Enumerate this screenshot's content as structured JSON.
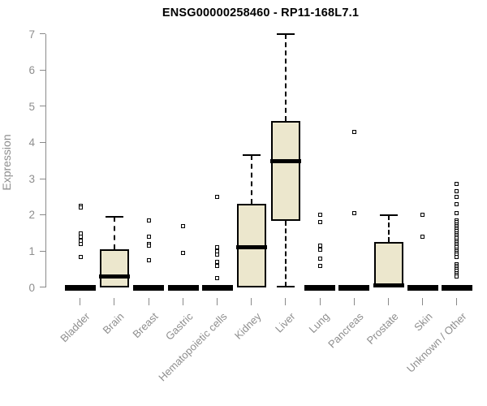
{
  "colors": {
    "background": "#ffffff",
    "title": "#000000",
    "axis": "#8a8a8a",
    "label": "#8e8e8e",
    "box_fill": "#ece7cd",
    "line": "#000000"
  },
  "chart_data": {
    "type": "boxplot",
    "title": "ENSG00000258460 - RP11-168L7.1",
    "ylabel": "Expression",
    "xlabel": "",
    "ylim": [
      0,
      7
    ],
    "yticks": [
      0,
      1,
      2,
      3,
      4,
      5,
      6,
      7
    ],
    "grid": false,
    "legend": false,
    "categories": [
      "Bladder",
      "Brain",
      "Breast",
      "Gastric",
      "Hematopoietic cells",
      "Kidney",
      "Liver",
      "Lung",
      "Pancreas",
      "Prostate",
      "Skin",
      "Unknown / Other"
    ],
    "series": [
      {
        "category": "Bladder",
        "collapsed": true,
        "q1": 0,
        "median": 0,
        "q3": 0,
        "whisker_low": 0,
        "whisker_high": 0,
        "outliers": [
          2.25,
          2.2,
          1.5,
          1.4,
          1.3,
          1.2,
          0.85
        ]
      },
      {
        "category": "Brain",
        "collapsed": false,
        "q1": 0,
        "median": 0.3,
        "q3": 1.05,
        "whisker_low": 0,
        "whisker_high": 1.95,
        "outliers": []
      },
      {
        "category": "Breast",
        "collapsed": true,
        "q1": 0,
        "median": 0,
        "q3": 0,
        "whisker_low": 0,
        "whisker_high": 0,
        "outliers": [
          1.85,
          1.4,
          1.2,
          1.15,
          0.75
        ]
      },
      {
        "category": "Gastric",
        "collapsed": true,
        "q1": 0,
        "median": 0,
        "q3": 0,
        "whisker_low": 0,
        "whisker_high": 0,
        "outliers": [
          1.7,
          0.95
        ]
      },
      {
        "category": "Hematopoietic cells",
        "collapsed": true,
        "q1": 0,
        "median": 0,
        "q3": 0,
        "whisker_low": 0,
        "whisker_high": 0,
        "outliers": [
          2.5,
          1.1,
          1.0,
          0.9,
          0.7,
          0.6,
          0.25
        ]
      },
      {
        "category": "Kidney",
        "collapsed": false,
        "q1": 0,
        "median": 1.1,
        "q3": 2.3,
        "whisker_low": 0,
        "whisker_high": 3.65,
        "outliers": []
      },
      {
        "category": "Liver",
        "collapsed": false,
        "q1": 1.85,
        "median": 3.5,
        "q3": 4.6,
        "whisker_low": 0.02,
        "whisker_high": 7.0,
        "outliers": []
      },
      {
        "category": "Lung",
        "collapsed": true,
        "q1": 0,
        "median": 0,
        "q3": 0,
        "whisker_low": 0,
        "whisker_high": 0,
        "outliers": [
          2.0,
          1.8,
          1.15,
          1.05,
          0.8,
          0.6
        ]
      },
      {
        "category": "Pancreas",
        "collapsed": true,
        "q1": 0,
        "median": 0,
        "q3": 0,
        "whisker_low": 0,
        "whisker_high": 0,
        "outliers": [
          4.3,
          2.05
        ]
      },
      {
        "category": "Prostate",
        "collapsed": false,
        "q1": 0,
        "median": 0.05,
        "q3": 1.25,
        "whisker_low": 0,
        "whisker_high": 2.0,
        "outliers": []
      },
      {
        "category": "Skin",
        "collapsed": true,
        "q1": 0,
        "median": 0,
        "q3": 0,
        "whisker_low": 0,
        "whisker_high": 0,
        "outliers": [
          2.0,
          1.4
        ]
      },
      {
        "category": "Unknown / Other",
        "collapsed": true,
        "q1": 0,
        "median": 0,
        "q3": 0,
        "whisker_low": 0,
        "whisker_high": 0,
        "outliers": [
          2.85,
          2.65,
          2.5,
          2.3,
          2.05,
          1.85,
          1.8,
          1.75,
          1.7,
          1.65,
          1.6,
          1.55,
          1.5,
          1.45,
          1.4,
          1.35,
          1.3,
          1.25,
          1.2,
          1.15,
          1.1,
          1.05,
          1.0,
          0.95,
          0.9,
          0.85,
          0.65,
          0.6,
          0.55,
          0.5,
          0.45,
          0.4,
          0.35,
          0.3
        ]
      }
    ]
  }
}
